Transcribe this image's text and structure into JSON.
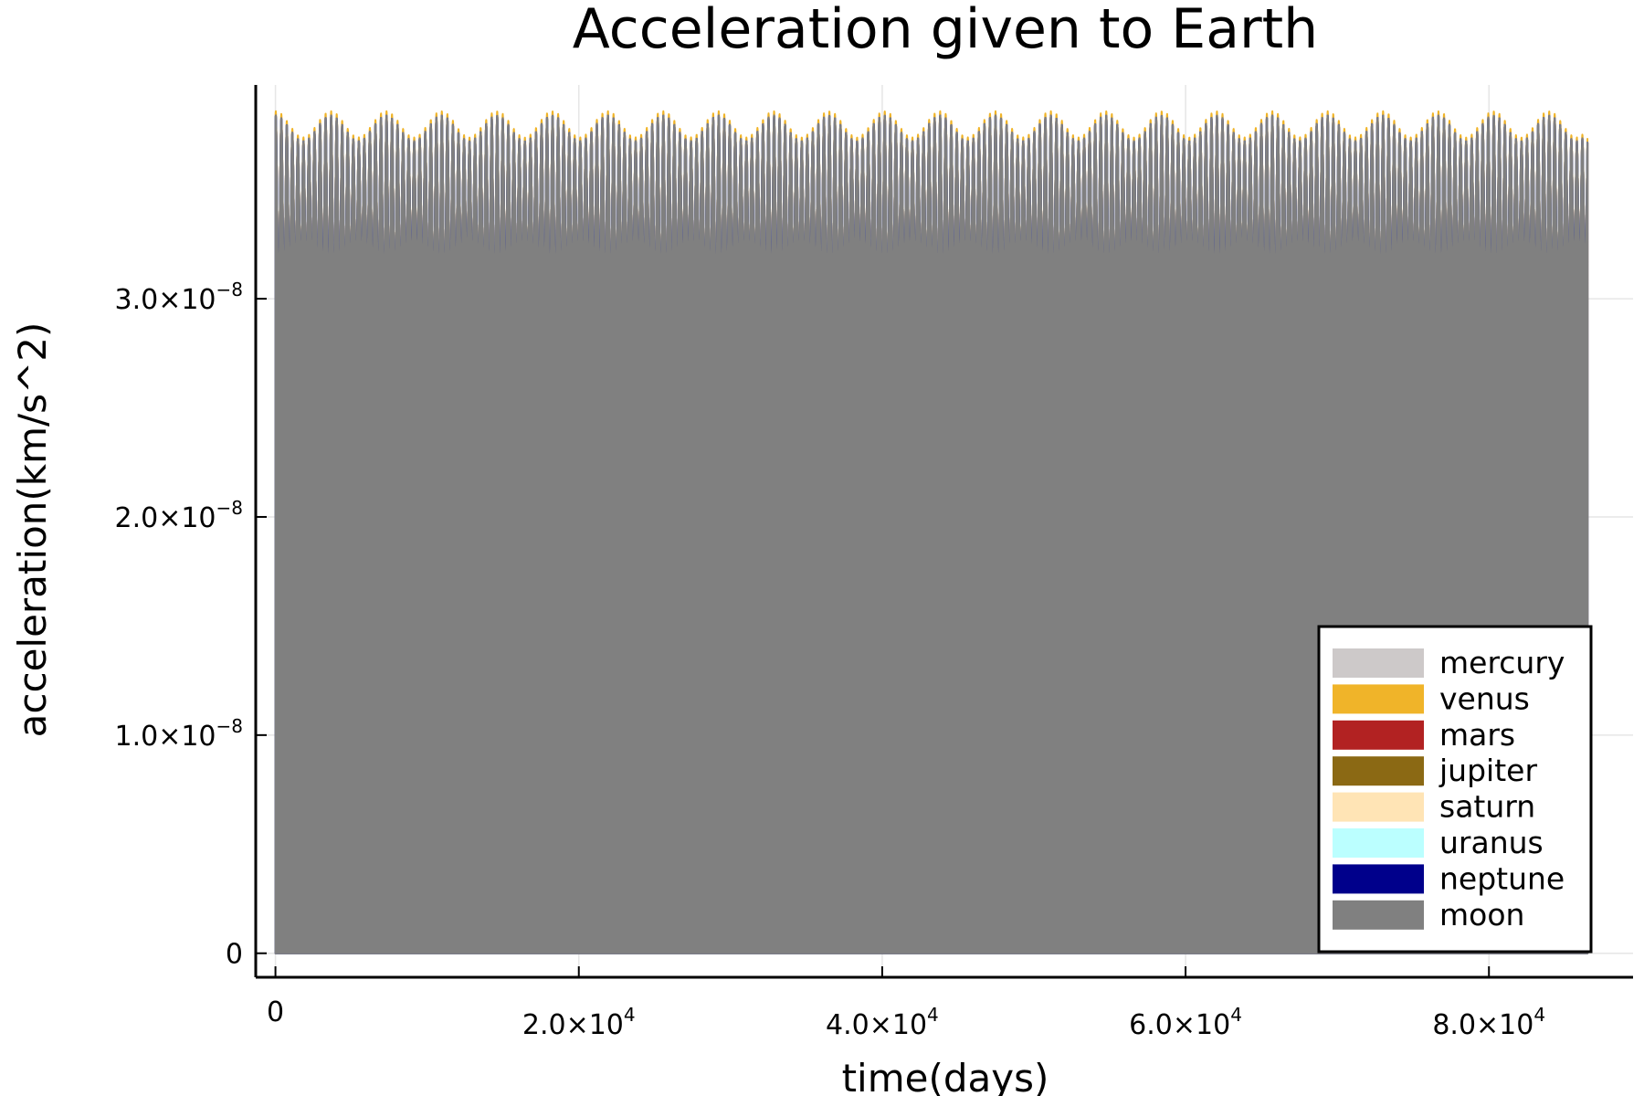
{
  "chart_data": {
    "type": "area",
    "title": "Acceleration given to Earth",
    "xlabel": "time(days)",
    "ylabel": "acceleration(km/s^2)",
    "xlim": [
      -1300,
      89500
    ],
    "ylim": [
      -1.1e-09,
      3.98e-08
    ],
    "x_ticks": [
      {
        "value": 0,
        "mant": "0",
        "exp": ""
      },
      {
        "value": 20000,
        "mant": "2.0×10",
        "exp": "4"
      },
      {
        "value": 40000,
        "mant": "4.0×10",
        "exp": "4"
      },
      {
        "value": 60000,
        "mant": "6.0×10",
        "exp": "4"
      },
      {
        "value": 80000,
        "mant": "8.0×10",
        "exp": "4"
      }
    ],
    "y_ticks": [
      {
        "value": 0,
        "mant": "0",
        "exp": ""
      },
      {
        "value": 1e-08,
        "mant": "1.0×10",
        "exp": "−8"
      },
      {
        "value": 2e-08,
        "mant": "2.0×10",
        "exp": "−8"
      },
      {
        "value": 3e-08,
        "mant": "3.0×10",
        "exp": "−8"
      }
    ],
    "grid": true,
    "legend_position": "bottom-right",
    "series": [
      {
        "name": "mercury",
        "color": "#cdc9c9",
        "x_range": [
          0,
          86500
        ],
        "y_min": 3e-08,
        "y_max": 3.84e-08,
        "oscillation_period_days": 365
      },
      {
        "name": "venus",
        "color": "#f0b429",
        "x_range": [
          0,
          86500
        ],
        "y_min": 3e-08,
        "y_max": 3.86e-08,
        "oscillation_period_days": 365
      },
      {
        "name": "mars",
        "color": "#b22222",
        "x_range": [
          0,
          86500
        ],
        "y_min": 3e-08,
        "y_max": 3.84e-08,
        "oscillation_period_days": 365
      },
      {
        "name": "jupiter",
        "color": "#8b6914",
        "x_range": [
          0,
          86500
        ],
        "y_min": 3e-08,
        "y_max": 3.84e-08,
        "oscillation_period_days": 365
      },
      {
        "name": "saturn",
        "color": "#ffe4b5",
        "x_range": [
          0,
          86500
        ],
        "y_min": 3e-08,
        "y_max": 3.84e-08,
        "oscillation_period_days": 365
      },
      {
        "name": "uranus",
        "color": "#bbffff",
        "x_range": [
          0,
          86500
        ],
        "y_min": 3e-08,
        "y_max": 3.84e-08,
        "oscillation_period_days": 365
      },
      {
        "name": "neptune",
        "color": "#00008b",
        "x_range": [
          0,
          86500
        ],
        "y_min": 3e-08,
        "y_max": 3.84e-08,
        "oscillation_period_days": 365
      },
      {
        "name": "moon",
        "color": "#808080",
        "x_range": [
          0,
          86500
        ],
        "y_min": 3e-08,
        "y_max": 3.84e-08,
        "oscillation_period_days": 365
      }
    ]
  }
}
